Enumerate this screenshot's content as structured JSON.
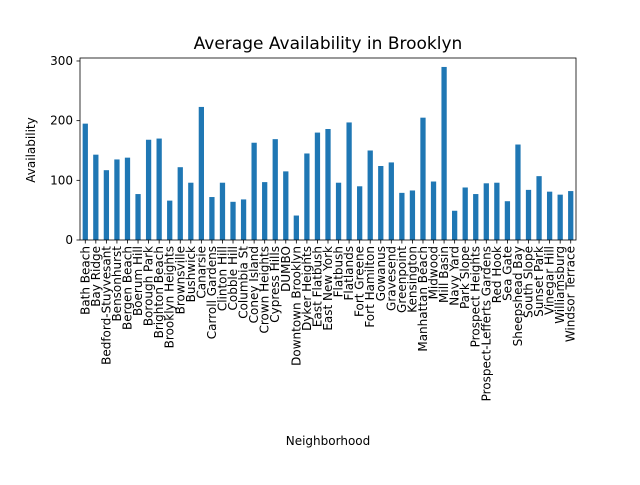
{
  "chart_data": {
    "type": "bar",
    "title": "Average Availability in Brooklyn",
    "xlabel": "Neighborhood",
    "ylabel": "Availability",
    "ylim": [
      0,
      305
    ],
    "yticks": [
      0,
      100,
      200,
      300
    ],
    "grid": false,
    "legend": "none",
    "bar_color": "#1f77b4",
    "categories": [
      "Bath Beach",
      "Bay Ridge",
      "Bedford-Stuyvesant",
      "Bensonhurst",
      "Bergen Beach",
      "Boerum Hill",
      "Borough Park",
      "Brighton Beach",
      "Brooklyn Heights",
      "Brownsville",
      "Bushwick",
      "Canarsie",
      "Carroll Gardens",
      "Clinton Hill",
      "Cobble Hill",
      "Columbia St",
      "Coney Island",
      "Crown Heights",
      "Cypress Hills",
      "DUMBO",
      "Downtown Brooklyn",
      "Dyker Heights",
      "East Flatbush",
      "East New York",
      "Flatbush",
      "Flatlands",
      "Fort Greene",
      "Fort Hamilton",
      "Gowanus",
      "Gravesend",
      "Greenpoint",
      "Kensington",
      "Manhattan Beach",
      "Midwood",
      "Mill Basin",
      "Navy Yard",
      "Park Slope",
      "Prospect Heights",
      "Prospect-Lefferts Gardens",
      "Red Hook",
      "Sea Gate",
      "Sheepshead Bay",
      "South Slope",
      "Sunset Park",
      "Vinegar Hill",
      "Williamsburg",
      "Windsor Terrace"
    ],
    "values": [
      195,
      143,
      117,
      135,
      138,
      77,
      168,
      170,
      66,
      122,
      96,
      223,
      72,
      96,
      64,
      68,
      163,
      97,
      169,
      115,
      41,
      145,
      180,
      186,
      96,
      197,
      90,
      150,
      124,
      130,
      79,
      83,
      205,
      98,
      290,
      49,
      88,
      77,
      95,
      96,
      65,
      160,
      84,
      107,
      81,
      76,
      82
    ]
  }
}
